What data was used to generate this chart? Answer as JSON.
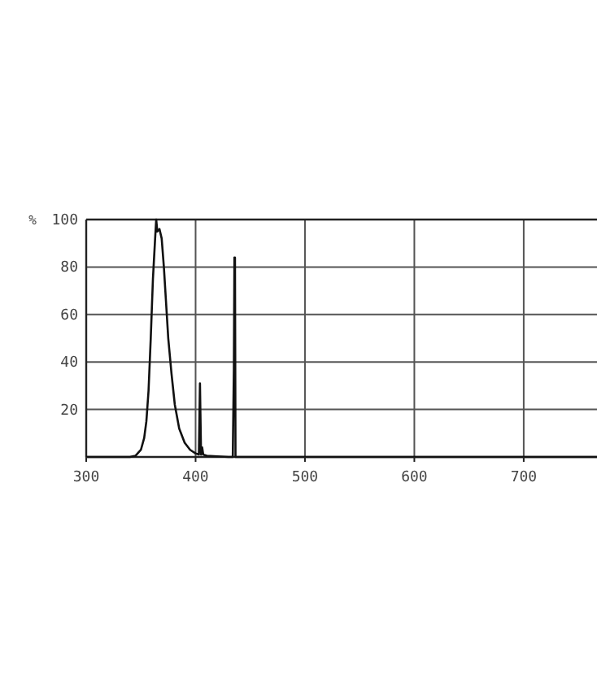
{
  "chart_data": {
    "type": "line",
    "ylabel": "%",
    "x": [
      300,
      340,
      345,
      350,
      353,
      355,
      357,
      359,
      361,
      363,
      364,
      365,
      367,
      369,
      371,
      373,
      375,
      378,
      381,
      385,
      390,
      395,
      400,
      403,
      404,
      405,
      406,
      407,
      410,
      430,
      434,
      435,
      435.5,
      436,
      436.5,
      450,
      767
    ],
    "series": [
      {
        "color": "#111111",
        "values": [
          0,
          0,
          0.5,
          3,
          8,
          15,
          28,
          50,
          75,
          92,
          100,
          95,
          96,
          92,
          80,
          65,
          50,
          35,
          22,
          12,
          6,
          3,
          1.5,
          1,
          31,
          1,
          4,
          1,
          0.5,
          0,
          0,
          37,
          84,
          84,
          0,
          0,
          0
        ]
      }
    ],
    "xlim": [
      300,
      767
    ],
    "xticks": [
      300,
      400,
      500,
      600,
      700
    ],
    "ylim": [
      0,
      100
    ],
    "yticks": [
      20,
      40,
      60,
      80,
      100
    ],
    "grid": true,
    "marker": "none",
    "line_style": "solid"
  }
}
